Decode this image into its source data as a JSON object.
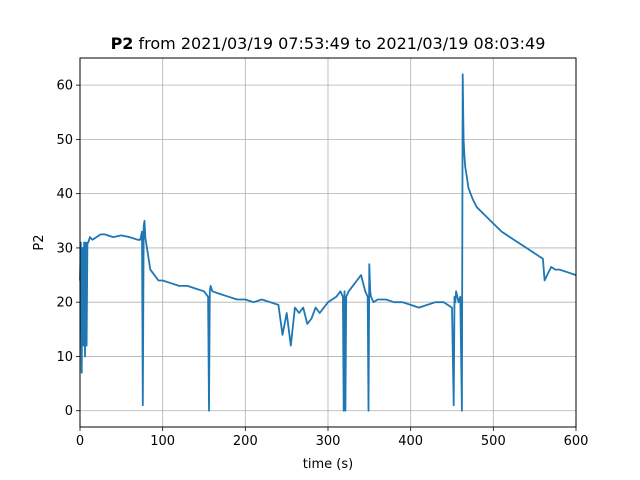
{
  "chart_data": {
    "type": "line",
    "title_bold": "P2",
    "title_rest": " from 2021/03/19 07:53:49 to 2021/03/19 08:03:49",
    "xlabel": "time (s)",
    "ylabel": "P2",
    "xlim": [
      0,
      600
    ],
    "ylim": [
      -3,
      65
    ],
    "xticks": [
      0,
      100,
      200,
      300,
      400,
      500,
      600
    ],
    "yticks": [
      0,
      10,
      20,
      30,
      40,
      50,
      60
    ],
    "grid": true,
    "line_color": "#1f77b4",
    "series": [
      {
        "x": [
          0,
          1,
          2,
          3,
          4,
          5,
          6,
          7,
          8,
          9,
          10,
          12,
          15,
          20,
          25,
          30,
          40,
          50,
          60,
          70,
          73,
          75,
          76,
          77,
          78,
          79,
          80,
          82,
          85,
          90,
          95,
          100,
          110,
          120,
          130,
          140,
          150,
          155,
          156,
          157,
          158,
          160,
          170,
          180,
          190,
          200,
          210,
          220,
          230,
          240,
          245,
          250,
          255,
          260,
          265,
          270,
          275,
          280,
          285,
          290,
          300,
          310,
          315,
          318,
          319,
          320,
          321,
          322,
          325,
          330,
          335,
          340,
          345,
          348,
          349,
          350,
          351,
          352,
          355,
          360,
          370,
          380,
          390,
          400,
          410,
          420,
          430,
          440,
          450,
          452,
          453,
          454,
          455,
          458,
          460,
          462,
          463,
          463.5,
          464,
          465,
          466,
          468,
          470,
          475,
          480,
          490,
          500,
          510,
          520,
          530,
          540,
          550,
          560,
          562,
          565,
          570,
          575,
          580,
          590,
          600
        ],
        "y": [
          24,
          31,
          7,
          30,
          12,
          31,
          10,
          31,
          12,
          31,
          31,
          32,
          31.5,
          32,
          32.5,
          32.5,
          32,
          32.3,
          32,
          31.5,
          31.5,
          33,
          1,
          34,
          35,
          32,
          31,
          29,
          26,
          25,
          24,
          24,
          23.5,
          23,
          23,
          22.5,
          22,
          21,
          0,
          22,
          23,
          22,
          21.5,
          21,
          20.5,
          20.5,
          20,
          20.5,
          20,
          19.5,
          14,
          18,
          12,
          19,
          18,
          19,
          16,
          17,
          19,
          18,
          20,
          21,
          22,
          21,
          0,
          22,
          0,
          21,
          22,
          23,
          24,
          25,
          22,
          21,
          0,
          27,
          22,
          21,
          20,
          20.5,
          20.5,
          20,
          20,
          19.5,
          19,
          19.5,
          20,
          20,
          19,
          1,
          21,
          20,
          22,
          20,
          21,
          0,
          62,
          55,
          50,
          47,
          45,
          43,
          41,
          39,
          37.5,
          36,
          34.5,
          33,
          32,
          31,
          30,
          29,
          28,
          24,
          25,
          26.5,
          26,
          26,
          25.5,
          25
        ]
      }
    ]
  }
}
